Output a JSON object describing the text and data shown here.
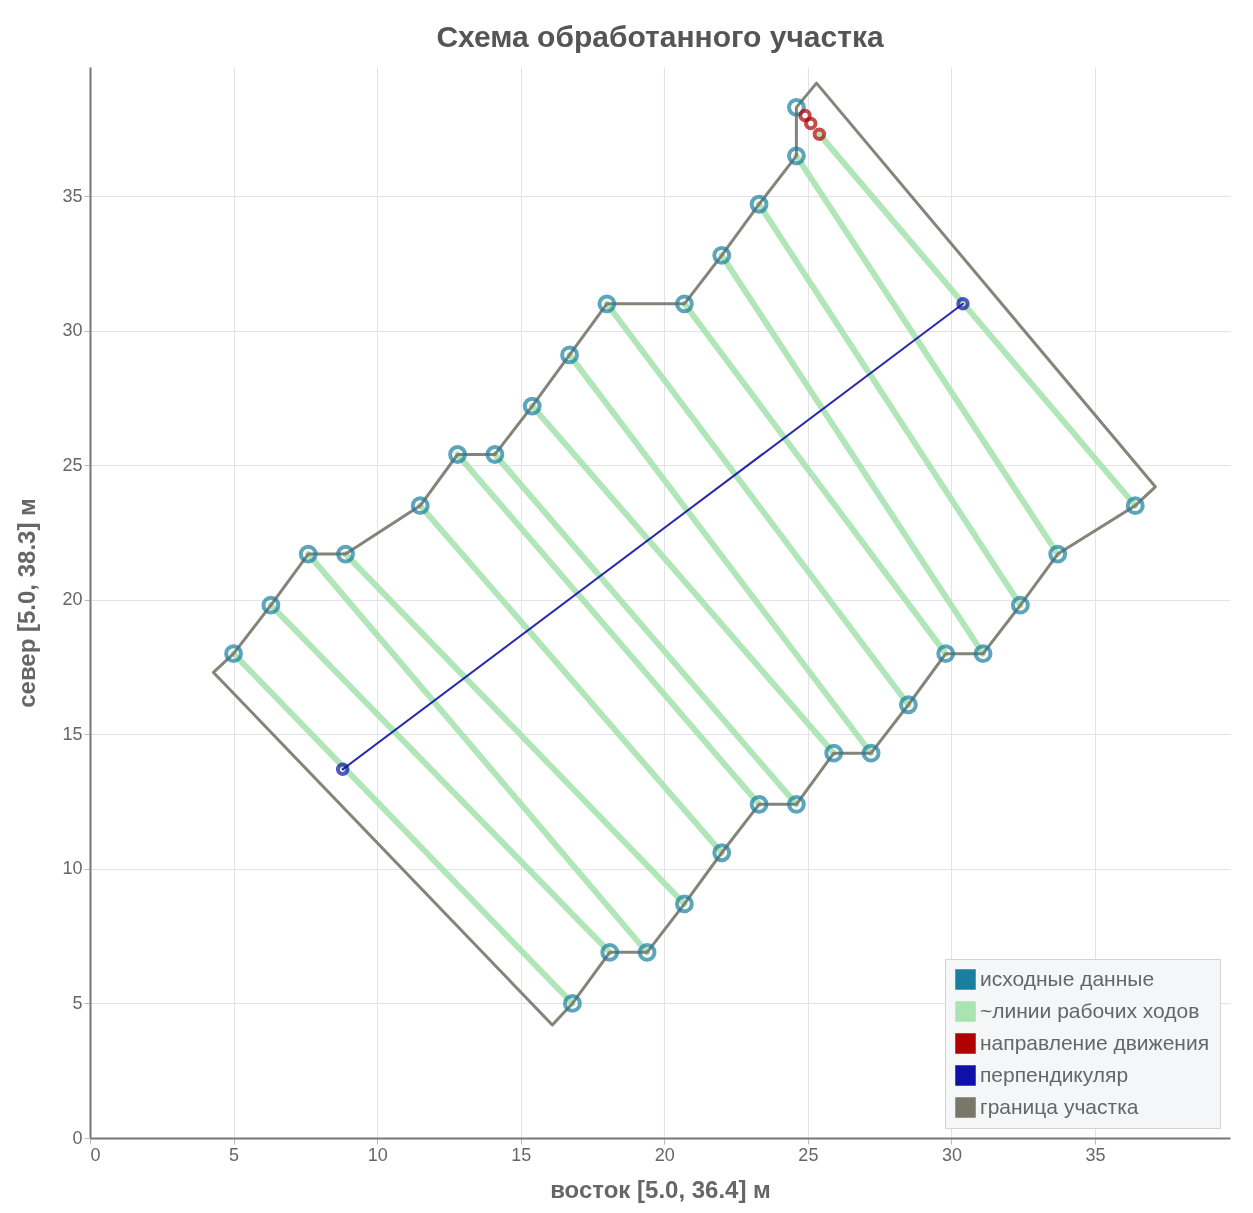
{
  "chart_data": {
    "type": "scatter",
    "title": "Схема обработанного участка",
    "xlabel": "восток   [5.0, 36.4]  м",
    "ylabel": "север  [5.0, 38.3]  м",
    "xlim": [
      0,
      39.7
    ],
    "ylim": [
      0,
      39.8
    ],
    "xticks": [
      0,
      5,
      10,
      15,
      20,
      25,
      30,
      35
    ],
    "yticks": [
      0,
      5,
      10,
      15,
      20,
      25,
      30,
      35
    ],
    "grid": true,
    "legend": "bottom right",
    "series": [
      {
        "name": "исходные данные",
        "marker": "circle",
        "color": "#1a7f9f",
        "x": [
          5.0,
          6.3,
          7.6,
          8.9,
          11.5,
          12.8,
          14.1,
          15.4,
          16.7,
          18.0,
          20.7,
          22.0,
          23.3,
          24.6,
          24.6,
          16.8,
          18.1,
          19.4,
          20.7,
          22.0,
          23.3,
          24.6,
          25.9,
          27.2,
          28.5,
          29.8,
          31.1,
          32.4,
          33.7,
          36.4
        ],
        "values": [
          18.0,
          19.8,
          21.7,
          21.7,
          23.5,
          25.4,
          25.4,
          27.2,
          29.1,
          31.0,
          31.0,
          32.8,
          34.7,
          36.5,
          38.3,
          5.0,
          6.9,
          6.9,
          8.7,
          10.6,
          12.4,
          12.4,
          14.3,
          14.3,
          16.1,
          18.0,
          18.0,
          19.8,
          21.7,
          23.5
        ]
      },
      {
        "name": "~линии рабочих ходов",
        "type": "line",
        "color": "#a8e3b0",
        "x": [
          5.0,
          16.8,
          null,
          6.3,
          18.1,
          null,
          7.6,
          19.4,
          null,
          8.9,
          20.7,
          null,
          11.5,
          22.0,
          null,
          12.8,
          23.3,
          null,
          14.1,
          24.6,
          null,
          15.4,
          25.9,
          null,
          16.7,
          27.2,
          null,
          18.0,
          28.5,
          null,
          20.7,
          29.8,
          null,
          22.0,
          31.1,
          null,
          23.3,
          32.4,
          null,
          24.6,
          33.7,
          null,
          25.4,
          36.4
        ],
        "values": [
          18.0,
          5.0,
          null,
          19.8,
          6.9,
          null,
          21.7,
          6.9,
          null,
          21.7,
          8.7,
          null,
          23.5,
          10.6,
          null,
          25.4,
          12.4,
          null,
          25.4,
          12.4,
          null,
          27.2,
          14.3,
          null,
          29.1,
          14.3,
          null,
          31.0,
          16.1,
          null,
          31.0,
          18.0,
          null,
          32.8,
          18.0,
          null,
          34.7,
          19.8,
          null,
          36.5,
          21.7,
          null,
          37.3,
          23.5
        ]
      },
      {
        "name": "направление движения",
        "marker": "circle",
        "color": "#b00000",
        "x": [
          24.9,
          25.1,
          25.4
        ],
        "values": [
          38.0,
          37.7,
          37.3
        ]
      },
      {
        "name": "перпендикуляр",
        "type": "line",
        "marker": "circle",
        "color": "#1010a8",
        "x": [
          8.8,
          30.4
        ],
        "values": [
          13.7,
          31.0
        ]
      },
      {
        "name": "граница участка",
        "type": "line",
        "color": "#77776a",
        "x": [
          4.3,
          5.0,
          6.3,
          7.6,
          8.9,
          11.5,
          12.8,
          14.1,
          15.4,
          16.7,
          18.0,
          20.7,
          22.0,
          23.3,
          24.6,
          24.6,
          25.3,
          37.1,
          null,
          4.3,
          16.1,
          16.8,
          18.1,
          19.4,
          20.7,
          22.0,
          23.3,
          24.6,
          25.9,
          27.2,
          28.5,
          29.8,
          31.1,
          32.4,
          33.7,
          36.4,
          37.1
        ],
        "values": [
          17.3,
          18.0,
          19.8,
          21.7,
          21.7,
          23.5,
          25.4,
          25.4,
          27.2,
          29.1,
          31.0,
          31.0,
          32.8,
          34.7,
          36.5,
          38.3,
          39.2,
          24.2,
          null,
          17.3,
          4.2,
          5.0,
          6.9,
          6.9,
          8.7,
          10.6,
          12.4,
          12.4,
          14.3,
          14.3,
          16.1,
          18.0,
          18.0,
          19.8,
          21.7,
          23.5,
          24.2
        ]
      }
    ]
  }
}
